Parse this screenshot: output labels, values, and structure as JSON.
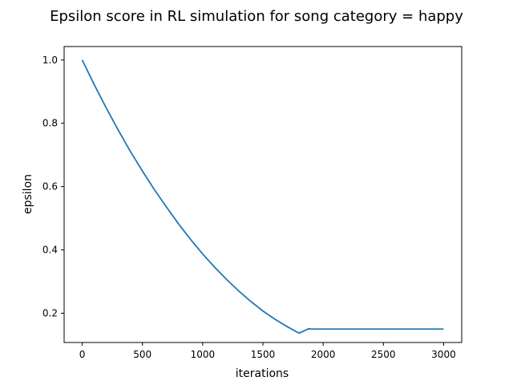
{
  "chart_data": {
    "type": "line",
    "title": "Epsilon score in RL simulation for song category = happy",
    "xlabel": "iterations",
    "ylabel": "epsilon",
    "xlim": [
      -150,
      3150
    ],
    "ylim": [
      0.1075,
      1.0425
    ],
    "xticks": [
      0,
      500,
      1000,
      1500,
      2000,
      2500,
      3000
    ],
    "yticks": [
      0.2,
      0.4,
      0.6,
      0.8,
      1.0
    ],
    "grid": false,
    "line_color": "#1f77b4",
    "series": [
      {
        "x": [
          0,
          100,
          200,
          300,
          400,
          500,
          600,
          700,
          800,
          900,
          1000,
          1100,
          1200,
          1300,
          1400,
          1500,
          1600,
          1700,
          1800,
          1880,
          1900,
          2000,
          2200,
          2400,
          2600,
          2800,
          3000
        ],
        "values": [
          1.0,
          0.922,
          0.848,
          0.778,
          0.711,
          0.649,
          0.59,
          0.535,
          0.482,
          0.433,
          0.387,
          0.345,
          0.306,
          0.27,
          0.237,
          0.207,
          0.181,
          0.158,
          0.137,
          0.151,
          0.15,
          0.15,
          0.15,
          0.15,
          0.15,
          0.15,
          0.15
        ]
      }
    ]
  }
}
